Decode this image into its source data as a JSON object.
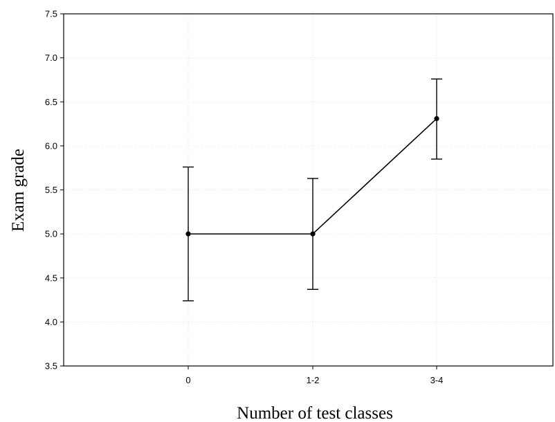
{
  "chart_data": {
    "type": "line",
    "categories": [
      "0",
      "1-2",
      "3-4"
    ],
    "values": [
      5.0,
      5.0,
      6.31
    ],
    "error_bars": [
      {
        "low": 4.24,
        "high": 5.76
      },
      {
        "low": 4.37,
        "high": 5.63
      },
      {
        "low": 5.85,
        "high": 6.76
      }
    ],
    "xlabel": "Number of test classes",
    "ylabel": "Exam grade",
    "ylim": [
      3.5,
      7.5
    ],
    "yticks": [
      "3.5",
      "4.0",
      "4.5",
      "5.0",
      "5.5",
      "6.0",
      "6.5",
      "7.0",
      "7.5"
    ],
    "grid": true
  }
}
